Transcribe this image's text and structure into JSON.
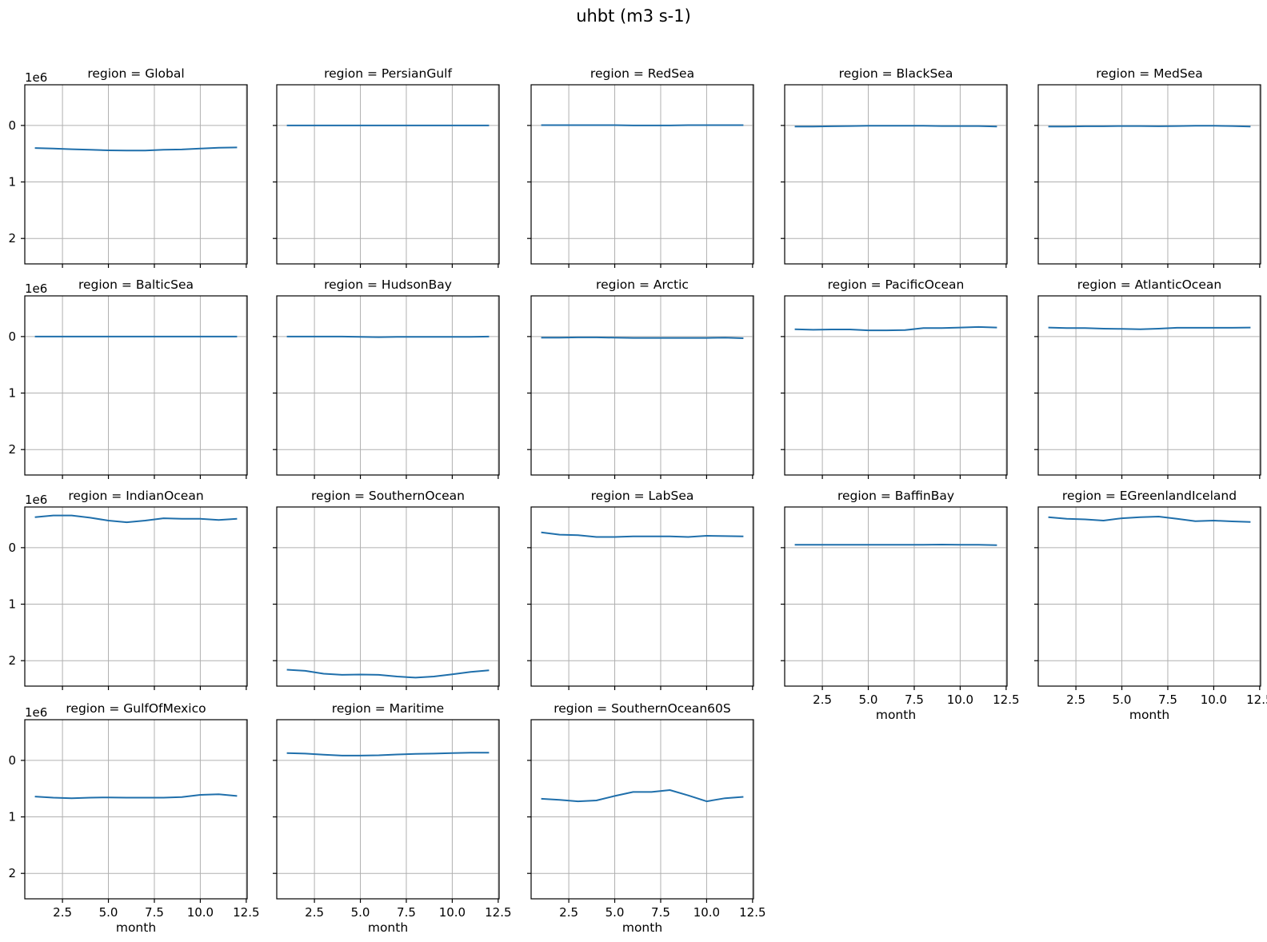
{
  "chart_data": {
    "type": "line",
    "title": "uhbt (m3 s-1)",
    "xlabel": "month",
    "y_offset_text": "1e6",
    "xlim": [
      0.45,
      12.55
    ],
    "ylim": [
      2.45,
      -0.72
    ],
    "y_inverted": true,
    "grid": true,
    "x_ticks": [
      2.5,
      5.0,
      7.5,
      10.0,
      12.5
    ],
    "x_tick_labels": [
      "2.5",
      "5.0",
      "7.5",
      "10.0",
      "12.5"
    ],
    "y_ticks": [
      0,
      1,
      2
    ],
    "y_tick_labels": [
      "0",
      "1",
      "2"
    ],
    "x": [
      1,
      2,
      3,
      4,
      5,
      6,
      7,
      8,
      9,
      10,
      11,
      12
    ],
    "series_color": "#1f6fab",
    "panels": [
      {
        "title": "region = Global",
        "values": [
          0.4,
          0.41,
          0.42,
          0.43,
          0.44,
          0.445,
          0.445,
          0.43,
          0.425,
          0.41,
          0.395,
          0.39
        ]
      },
      {
        "title": "region = PersianGulf",
        "values": [
          0.0,
          0.0,
          0.0,
          0.0,
          0.0,
          0.0,
          0.0,
          0.0,
          0.0,
          0.0,
          0.0,
          0.0
        ]
      },
      {
        "title": "region = RedSea",
        "values": [
          -0.005,
          -0.005,
          -0.005,
          -0.005,
          -0.005,
          0.0,
          0.0,
          0.0,
          -0.005,
          -0.005,
          -0.005,
          -0.005
        ]
      },
      {
        "title": "region = BlackSea",
        "values": [
          0.02,
          0.02,
          0.015,
          0.01,
          0.005,
          0.005,
          0.005,
          0.005,
          0.01,
          0.01,
          0.01,
          0.02
        ]
      },
      {
        "title": "region = MedSea",
        "values": [
          0.02,
          0.02,
          0.015,
          0.015,
          0.01,
          0.01,
          0.015,
          0.01,
          0.005,
          0.005,
          0.01,
          0.02
        ]
      },
      {
        "title": "region = BalticSea",
        "values": [
          0.0,
          0.0,
          0.0,
          0.0,
          0.0,
          0.0,
          0.0,
          0.0,
          0.0,
          0.0,
          0.0,
          0.0
        ]
      },
      {
        "title": "region = HudsonBay",
        "values": [
          0.0,
          0.0,
          0.0,
          0.0,
          0.005,
          0.01,
          0.005,
          0.005,
          0.005,
          0.005,
          0.005,
          0.0
        ]
      },
      {
        "title": "region = Arctic",
        "values": [
          0.02,
          0.02,
          0.015,
          0.015,
          0.02,
          0.025,
          0.025,
          0.025,
          0.025,
          0.025,
          0.02,
          0.03
        ]
      },
      {
        "title": "region = PacificOcean",
        "values": [
          -0.13,
          -0.12,
          -0.125,
          -0.125,
          -0.11,
          -0.11,
          -0.115,
          -0.15,
          -0.15,
          -0.16,
          -0.17,
          -0.16
        ]
      },
      {
        "title": "region = AtlanticOcean",
        "values": [
          -0.16,
          -0.15,
          -0.15,
          -0.14,
          -0.135,
          -0.13,
          -0.14,
          -0.155,
          -0.155,
          -0.155,
          -0.155,
          -0.16
        ]
      },
      {
        "title": "region = IndianOcean",
        "values": [
          -0.54,
          -0.57,
          -0.57,
          -0.53,
          -0.48,
          -0.45,
          -0.48,
          -0.52,
          -0.51,
          -0.51,
          -0.49,
          -0.51
        ]
      },
      {
        "title": "region = SouthernOcean",
        "values": [
          2.16,
          2.18,
          2.23,
          2.25,
          2.245,
          2.25,
          2.28,
          2.3,
          2.28,
          2.24,
          2.2,
          2.17
        ]
      },
      {
        "title": "region = LabSea",
        "values": [
          -0.27,
          -0.23,
          -0.22,
          -0.19,
          -0.19,
          -0.2,
          -0.2,
          -0.2,
          -0.19,
          -0.21,
          -0.205,
          -0.2
        ]
      },
      {
        "title": "region = BaffinBay",
        "values": [
          -0.05,
          -0.05,
          -0.05,
          -0.05,
          -0.05,
          -0.05,
          -0.05,
          -0.05,
          -0.055,
          -0.05,
          -0.05,
          -0.045
        ]
      },
      {
        "title": "region = EGreenlandIceland",
        "values": [
          -0.54,
          -0.51,
          -0.5,
          -0.48,
          -0.52,
          -0.54,
          -0.55,
          -0.51,
          -0.47,
          -0.48,
          -0.465,
          -0.455
        ]
      },
      {
        "title": "region = GulfOfMexico",
        "values": [
          0.64,
          0.66,
          0.67,
          0.66,
          0.655,
          0.66,
          0.66,
          0.66,
          0.65,
          0.61,
          0.6,
          0.63
        ]
      },
      {
        "title": "region = Maritime",
        "values": [
          -0.13,
          -0.12,
          -0.1,
          -0.085,
          -0.085,
          -0.09,
          -0.105,
          -0.115,
          -0.12,
          -0.13,
          -0.135,
          -0.135
        ]
      },
      {
        "title": "region = SouthernOcean60S",
        "values": [
          0.68,
          0.7,
          0.725,
          0.71,
          0.63,
          0.56,
          0.56,
          0.525,
          0.62,
          0.725,
          0.67,
          0.645
        ]
      }
    ]
  }
}
